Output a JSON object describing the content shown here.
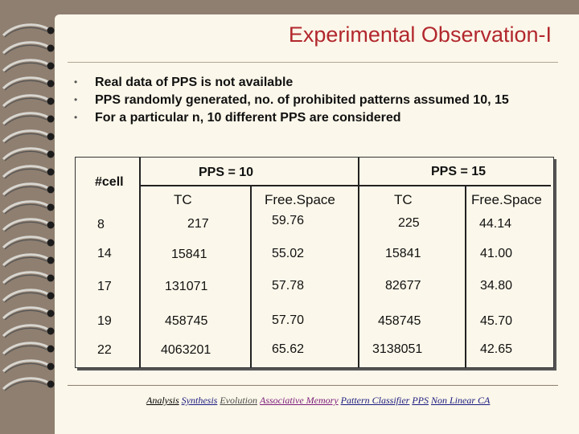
{
  "title": "Experimental Observation-I",
  "bullets": [
    "Real data of PPS is not available",
    "PPS randomly generated, no. of prohibited patterns assumed  10, 15",
    "For a particular n, 10 different PPS are considered"
  ],
  "bullet_marker": "•",
  "table": {
    "cell_header": "#cell",
    "group1": "PPS = 10",
    "group2": "PPS = 15",
    "sub_headers": [
      "TC",
      "Free.Space",
      "TC",
      "Free.Space"
    ],
    "rows": [
      [
        "8",
        "217",
        "59.76",
        "225",
        "44.14"
      ],
      [
        "14",
        "15841",
        "55.02",
        "15841",
        "41.00"
      ],
      [
        "17",
        "131071",
        "57.78",
        "82677",
        "34.80"
      ],
      [
        "19",
        "458745",
        "57.70",
        "458745",
        "45.70"
      ],
      [
        "22",
        "4063201",
        "65.62",
        "3138051",
        "42.65"
      ]
    ]
  },
  "footer_links": [
    {
      "text": "Analysis",
      "color": "#000000"
    },
    {
      "text": "Synthesis",
      "color": "#1a1a80"
    },
    {
      "text": "Evolution",
      "color": "#4a4a4a"
    },
    {
      "text": "Associative Memory",
      "color": "#7a1a7a"
    },
    {
      "text": "Pattern Classifier",
      "color": "#1a1a80"
    },
    {
      "text": "PPS",
      "color": "#1a1a80"
    },
    {
      "text": "Non Linear CA",
      "color": "#1a1a80"
    }
  ],
  "colors": {
    "title": "#b2272d",
    "background": "#8f7f70",
    "page": "#fbf7ea"
  }
}
